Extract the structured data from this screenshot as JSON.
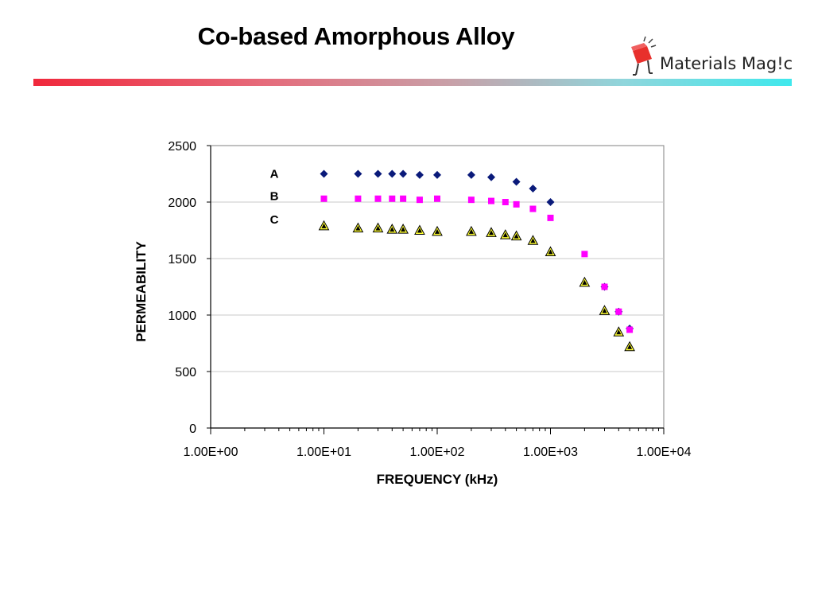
{
  "slide": {
    "title": "Co-based Amorphous Alloy",
    "logo_text": "Materials Mag!c",
    "logo_text_color": "#222222",
    "logo_accent_color": "#e8302c"
  },
  "chart_data": {
    "type": "scatter",
    "title": "",
    "xlabel": "FREQUENCY (kHz)",
    "ylabel": "PERMEABILITY",
    "xscale": "log",
    "xlim": [
      1,
      10000
    ],
    "ylim": [
      0,
      2500
    ],
    "xticks": [
      "1.00E+00",
      "1.00E+01",
      "1.00E+02",
      "1.00E+03",
      "1.00E+04"
    ],
    "yticks": [
      "0",
      "500",
      "1000",
      "1500",
      "2000",
      "2500"
    ],
    "grid": "horizontal",
    "legend": "none",
    "series": [
      {
        "name": "A",
        "marker": "diamond",
        "color": "#0a1a7a",
        "x": [
          10,
          20,
          30,
          40,
          50,
          70,
          100,
          200,
          300,
          500,
          700,
          1000,
          3000,
          4000,
          5000
        ],
        "y": [
          2250,
          2250,
          2250,
          2250,
          2250,
          2240,
          2240,
          2240,
          2220,
          2180,
          2120,
          2000,
          1250,
          1030,
          880
        ]
      },
      {
        "name": "B",
        "marker": "square",
        "color": "#ff00ff",
        "x": [
          10,
          20,
          30,
          40,
          50,
          70,
          100,
          200,
          300,
          400,
          500,
          700,
          1000,
          2000,
          3000,
          4000,
          5000
        ],
        "y": [
          2030,
          2030,
          2030,
          2030,
          2030,
          2020,
          2030,
          2020,
          2010,
          2000,
          1980,
          1940,
          1860,
          1540,
          1250,
          1030,
          870
        ]
      },
      {
        "name": "C",
        "marker": "triangle",
        "color": "#ffff33",
        "edge_color": "#000000",
        "x": [
          10,
          20,
          30,
          40,
          50,
          70,
          100,
          200,
          300,
          400,
          500,
          700,
          1000,
          2000,
          3000,
          4000,
          5000
        ],
        "y": [
          1790,
          1770,
          1770,
          1760,
          1760,
          1750,
          1740,
          1740,
          1730,
          1710,
          1700,
          1660,
          1560,
          1290,
          1040,
          850,
          720
        ]
      }
    ]
  }
}
